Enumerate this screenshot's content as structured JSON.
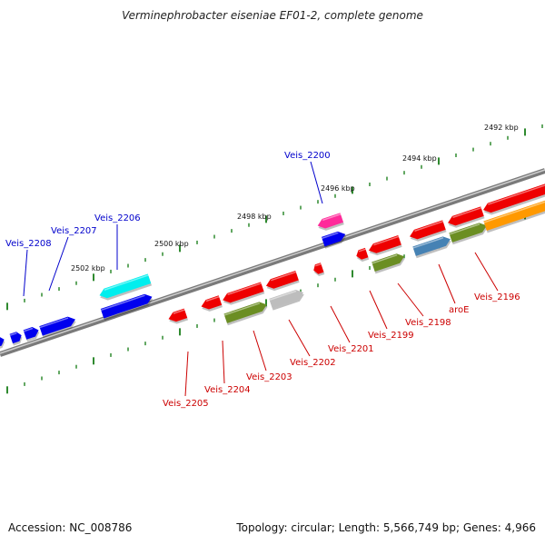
{
  "title": "Verminephrobacter eiseniae EF01-2, complete genome",
  "footer": {
    "accession": "Accession: NC_008786",
    "summary": "Topology: circular; Length: 5,566,749 bp; Genes: 4,966"
  },
  "scale_labels": [
    "2492 kbp",
    "2494 kbp",
    "2496 kbp",
    "2498 kbp",
    "2500 kbp",
    "2502 kbp"
  ],
  "colors": {
    "backbone": "#7a7a7a",
    "tick": "#2f8a2f",
    "forward_label": "#0000cc",
    "reverse_label": "#cc0000",
    "forward_gene": "#0000ee",
    "reverse_gene": "#ee0000",
    "cyan_gene": "#00eeee",
    "magenta_gene": "#ff2a9a",
    "olive_gene": "#6b8e23",
    "grey_gene": "#bdbdbd",
    "steelblue_gene": "#4682b4",
    "orange_gene": "#ff9900"
  },
  "genes": [
    {
      "label": "Veis_2208",
      "strand": "forward"
    },
    {
      "label": "Veis_2207",
      "strand": "forward"
    },
    {
      "label": "Veis_2206",
      "strand": "forward"
    },
    {
      "label": "Veis_2200",
      "strand": "forward"
    },
    {
      "label": "Veis_2205",
      "strand": "reverse"
    },
    {
      "label": "Veis_2204",
      "strand": "reverse"
    },
    {
      "label": "Veis_2203",
      "strand": "reverse"
    },
    {
      "label": "Veis_2202",
      "strand": "reverse"
    },
    {
      "label": "Veis_2201",
      "strand": "reverse"
    },
    {
      "label": "Veis_2199",
      "strand": "reverse"
    },
    {
      "label": "Veis_2198",
      "strand": "reverse"
    },
    {
      "label": "aroE",
      "strand": "reverse"
    },
    {
      "label": "Veis_2196",
      "strand": "reverse"
    }
  ]
}
